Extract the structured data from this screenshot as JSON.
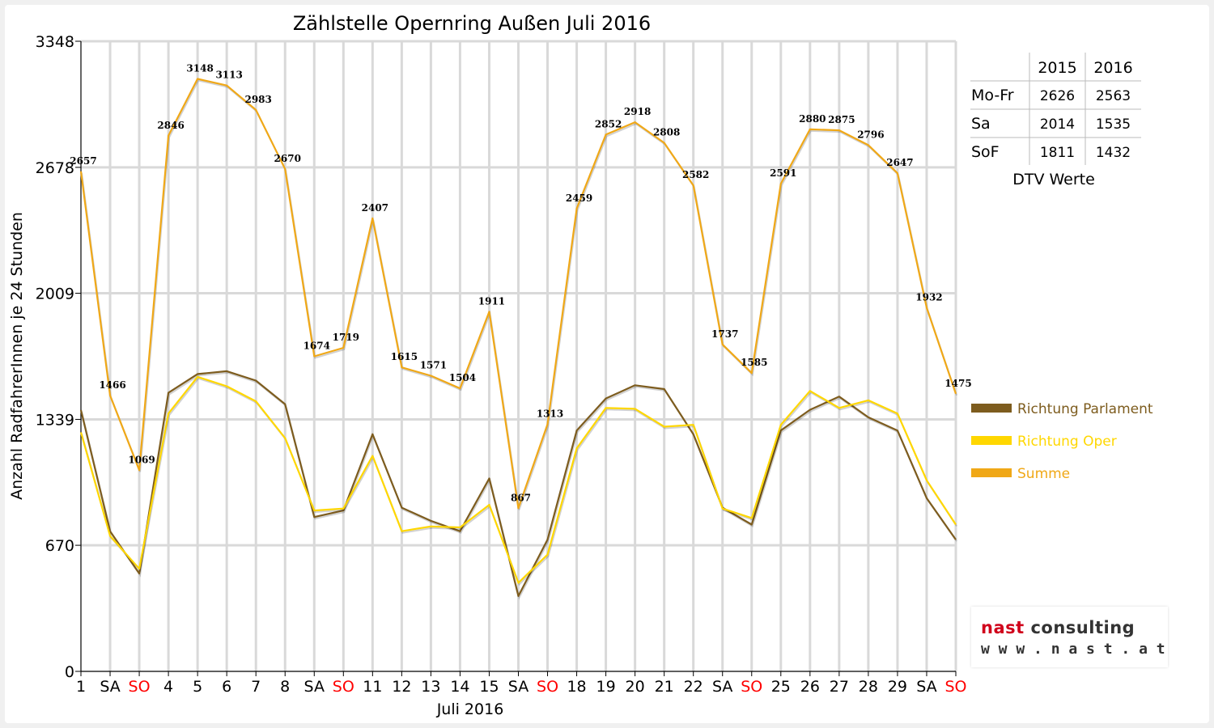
{
  "chart_data": {
    "type": "line",
    "title": "Zählstelle Opernring Außen Juli 2016",
    "xlabel": "Juli 2016",
    "ylabel": "Anzahl RadfahrerInnen je 24 Stunden",
    "ylim": [
      0,
      3348
    ],
    "yticks": [
      0,
      670,
      1339,
      2009,
      2678,
      3348
    ],
    "grid": true,
    "legend_position": "right",
    "categories": [
      "1",
      "SA",
      "SO",
      "4",
      "5",
      "6",
      "7",
      "8",
      "SA",
      "SO",
      "11",
      "12",
      "13",
      "14",
      "15",
      "SA",
      "SO",
      "18",
      "19",
      "20",
      "21",
      "22",
      "SA",
      "SO",
      "25",
      "26",
      "27",
      "28",
      "29",
      "SA",
      "SO"
    ],
    "weekend_color": "#ff0000",
    "series": [
      {
        "name": "Richtung Parlament",
        "color": "#7d5c1e",
        "values": [
          1388,
          745,
          520,
          1480,
          1580,
          1595,
          1545,
          1420,
          820,
          855,
          1260,
          870,
          800,
          745,
          1025,
          400,
          700,
          1280,
          1450,
          1520,
          1500,
          1260,
          870,
          780,
          1280,
          1390,
          1460,
          1350,
          1280,
          920,
          700
        ]
      },
      {
        "name": "Richtung Oper",
        "color": "#ffd700",
        "values": [
          1270,
          720,
          545,
          1370,
          1565,
          1515,
          1435,
          1240,
          855,
          865,
          1145,
          745,
          770,
          765,
          885,
          470,
          620,
          1185,
          1400,
          1395,
          1300,
          1310,
          865,
          815,
          1310,
          1490,
          1400,
          1440,
          1370,
          1015,
          780
        ]
      },
      {
        "name": "Summe",
        "color": "#f0a817",
        "values": [
          2657,
          1466,
          1069,
          2846,
          3148,
          3113,
          2983,
          2670,
          1674,
          1719,
          2407,
          1615,
          1571,
          1504,
          1911,
          867,
          1313,
          2459,
          2852,
          2918,
          2808,
          2582,
          1737,
          1585,
          2591,
          2880,
          2875,
          2796,
          2647,
          1932,
          1475
        ]
      }
    ]
  },
  "dtv_table": {
    "headers": [
      "",
      "2015",
      "2016"
    ],
    "rows": [
      [
        "Mo-Fr",
        "2626",
        "2563"
      ],
      [
        "Sa",
        "2014",
        "1535"
      ],
      [
        "SoF",
        "1811",
        "1432"
      ]
    ],
    "caption": "DTV Werte"
  },
  "logo": {
    "name_part1": "nast",
    "name_part2": " consulting",
    "url": "w w w . n a s t . a t"
  }
}
